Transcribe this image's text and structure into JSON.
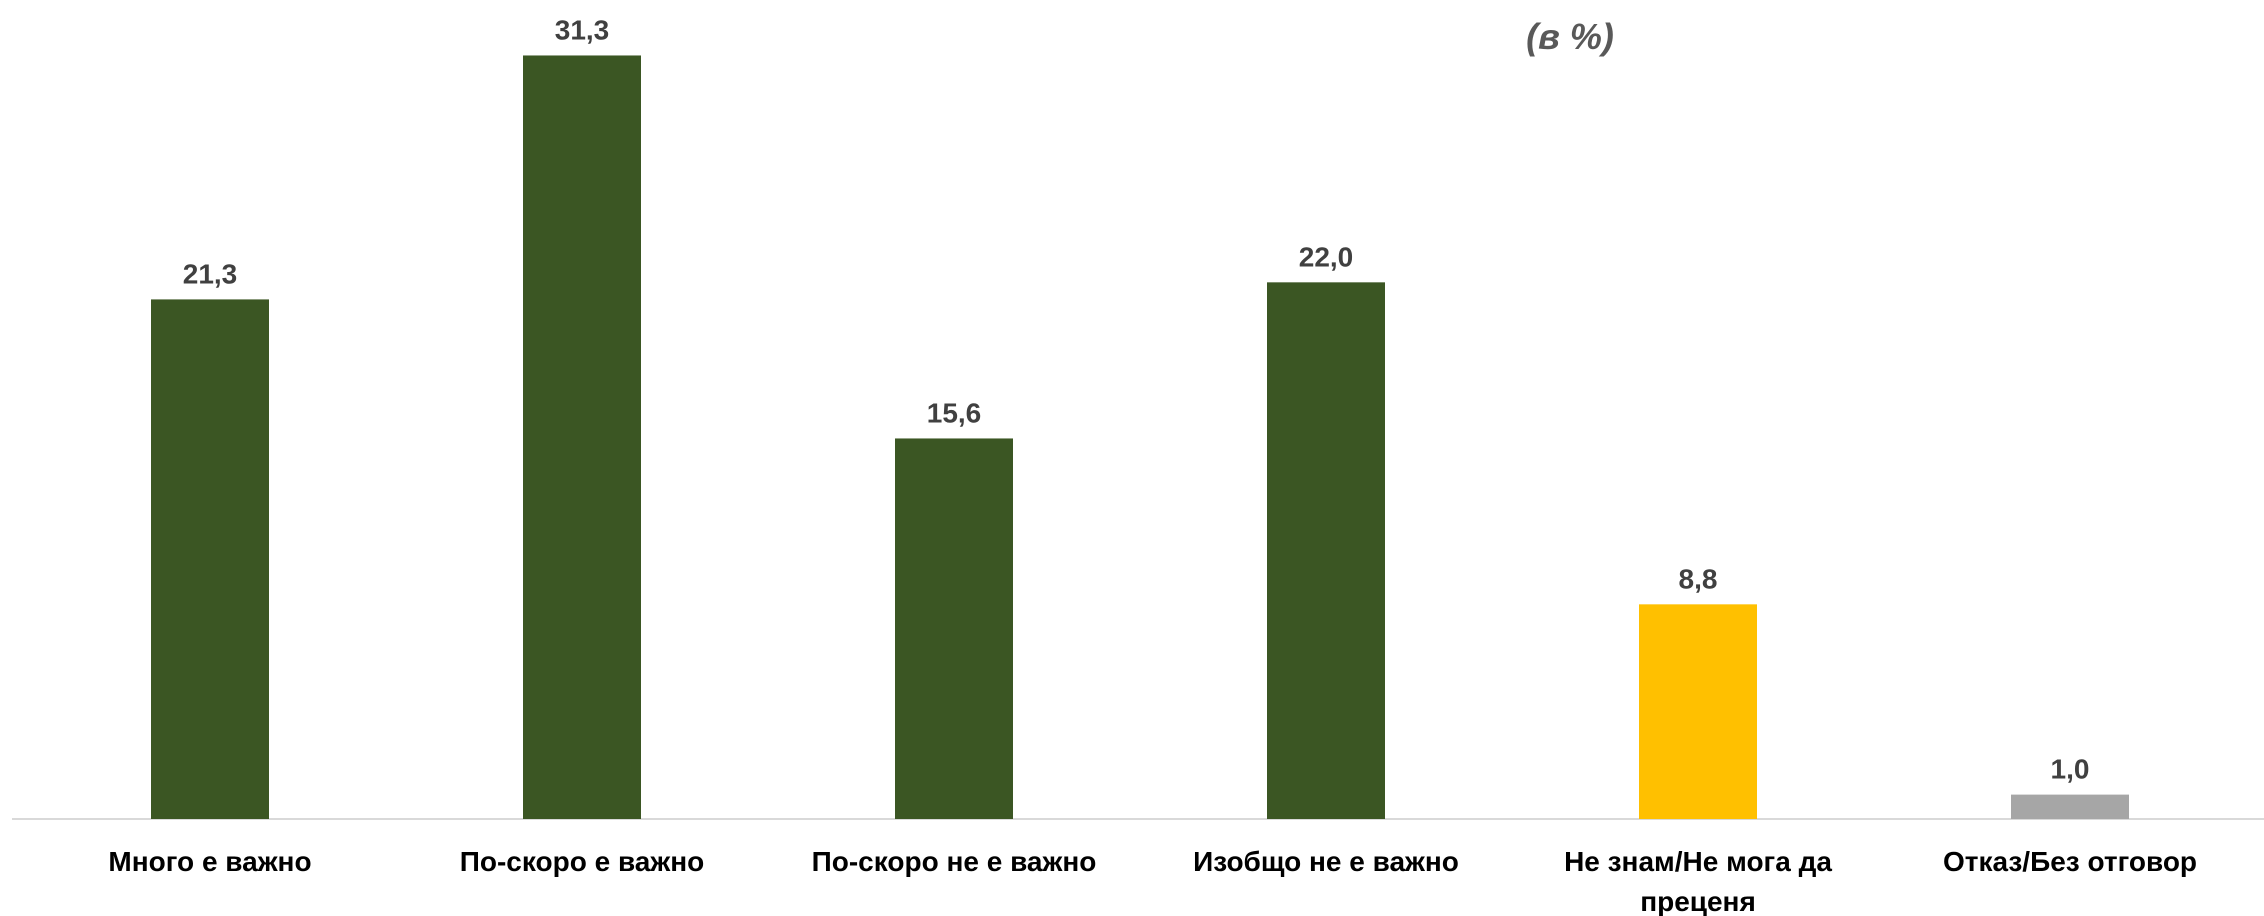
{
  "chart_data": {
    "type": "bar",
    "subtitle": "(в %)",
    "categories": [
      "Много е важно",
      "По-скоро е важно",
      "По-скоро не е важно",
      "Изобщо не е важно",
      "Не знам/Не мога да преценя",
      "Отказ/Без отговор"
    ],
    "values": [
      21.3,
      31.3,
      15.6,
      22.0,
      8.8,
      1.0
    ],
    "value_labels": [
      "21,3",
      "31,3",
      "15,6",
      "22,0",
      "8,8",
      "1,0"
    ],
    "colors": [
      "#3b5623",
      "#3b5623",
      "#3b5623",
      "#3b5623",
      "#ffc000",
      "#a6a6a6"
    ],
    "ylim": [
      0,
      33
    ]
  }
}
